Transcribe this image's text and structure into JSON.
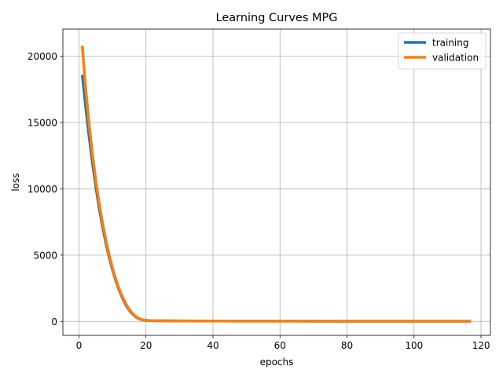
{
  "chart_data": {
    "type": "line",
    "title": "Learning Curves MPG",
    "xlabel": "epochs",
    "ylabel": "loss",
    "xlim": [
      -4.8,
      122.8
    ],
    "ylim": [
      -1050,
      22050
    ],
    "xticks": [
      0,
      20,
      40,
      60,
      80,
      100,
      120
    ],
    "yticks": [
      0,
      5000,
      10000,
      15000,
      20000
    ],
    "grid": true,
    "legend_position": "top-right",
    "series": [
      {
        "name": "training",
        "color": "#1f77b4",
        "x": [
          1,
          2,
          3,
          4,
          5,
          6,
          7,
          8,
          9,
          10,
          11,
          12,
          13,
          14,
          15,
          16,
          17,
          18,
          19,
          20,
          21,
          22,
          23,
          24,
          26,
          30,
          40,
          50,
          60,
          70,
          80,
          90,
          100,
          110,
          117
        ],
        "y": [
          18600,
          16200,
          14000,
          12000,
          10200,
          8600,
          7200,
          5950,
          4850,
          3900,
          3050,
          2350,
          1750,
          1250,
          850,
          550,
          330,
          190,
          110,
          75,
          60,
          52,
          48,
          45,
          42,
          38,
          30,
          25,
          22,
          20,
          18,
          17,
          16,
          15,
          15
        ]
      },
      {
        "name": "validation",
        "color": "#ff7f0e",
        "x": [
          1,
          2,
          3,
          4,
          5,
          6,
          7,
          8,
          9,
          10,
          11,
          12,
          13,
          14,
          15,
          16,
          17,
          18,
          19,
          20,
          21,
          22,
          23,
          24,
          26,
          30,
          40,
          50,
          60,
          70,
          80,
          90,
          100,
          110,
          117
        ],
        "y": [
          20800,
          17600,
          15000,
          12700,
          10700,
          9000,
          7500,
          6200,
          5050,
          4050,
          3200,
          2450,
          1850,
          1350,
          920,
          600,
          370,
          220,
          130,
          90,
          70,
          60,
          55,
          50,
          46,
          40,
          32,
          27,
          24,
          22,
          20,
          19,
          18,
          17,
          17
        ]
      }
    ]
  }
}
